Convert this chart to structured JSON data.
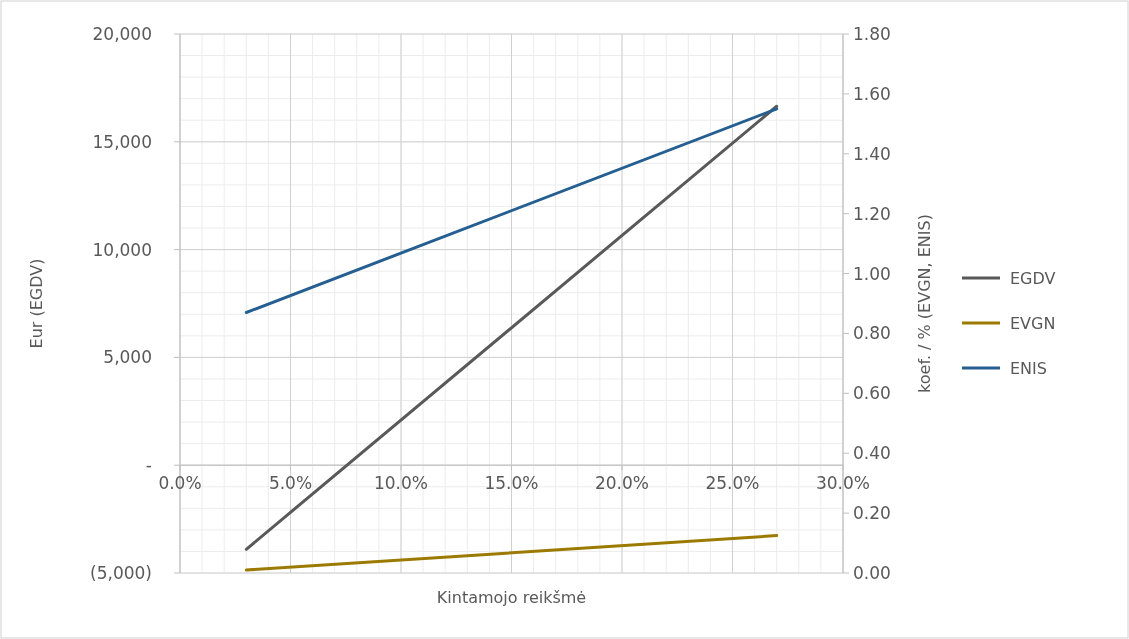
{
  "chart_data": {
    "type": "line",
    "xlabel": "Kintamojo reikšmė",
    "ylabel": "Eur (EGDV)",
    "y2label": "koef. / % (EVGN, ENIS)",
    "xlim": [
      0,
      30
    ],
    "xticks": [
      {
        "value": 0,
        "label": "0.0%"
      },
      {
        "value": 5,
        "label": "5.0%"
      },
      {
        "value": 10,
        "label": "10.0%"
      },
      {
        "value": 15,
        "label": "15.0%"
      },
      {
        "value": 20,
        "label": "20.0%"
      },
      {
        "value": 25,
        "label": "25.0%"
      },
      {
        "value": 30,
        "label": "30.0%"
      }
    ],
    "ylim": [
      -5000,
      20000
    ],
    "yticks": [
      {
        "value": -5000,
        "label": "(5,000)"
      },
      {
        "value": 0,
        "label": "-"
      },
      {
        "value": 5000,
        "label": "5,000"
      },
      {
        "value": 10000,
        "label": "10,000"
      },
      {
        "value": 15000,
        "label": "15,000"
      },
      {
        "value": 20000,
        "label": "20,000"
      }
    ],
    "y2lim": [
      0,
      1.8
    ],
    "y2ticks": [
      {
        "value": 0,
        "label": "0.00"
      },
      {
        "value": 0.2,
        "label": "0.20"
      },
      {
        "value": 0.4,
        "label": "0.40"
      },
      {
        "value": 0.6,
        "label": "0.60"
      },
      {
        "value": 0.8,
        "label": "0.80"
      },
      {
        "value": 1,
        "label": "1.00"
      },
      {
        "value": 1.2,
        "label": "1.20"
      },
      {
        "value": 1.4,
        "label": "1.40"
      },
      {
        "value": 1.6,
        "label": "1.60"
      },
      {
        "value": 1.8,
        "label": "1.80"
      }
    ],
    "x": [
      3,
      27
    ],
    "series": [
      {
        "name": "EGDV",
        "color": "#595959",
        "values": [
          -3900,
          16650
        ]
      },
      {
        "name": "EVGN",
        "color": "#9c7a00",
        "values": [
          0.01,
          0.125
        ],
        "axis": "y2"
      },
      {
        "name": "ENIS",
        "color": "#255e91",
        "values": [
          0.87,
          1.55
        ],
        "axis": "y2"
      }
    ],
    "grid": true,
    "legend": "right",
    "marker": "none",
    "line_style": "solid"
  }
}
